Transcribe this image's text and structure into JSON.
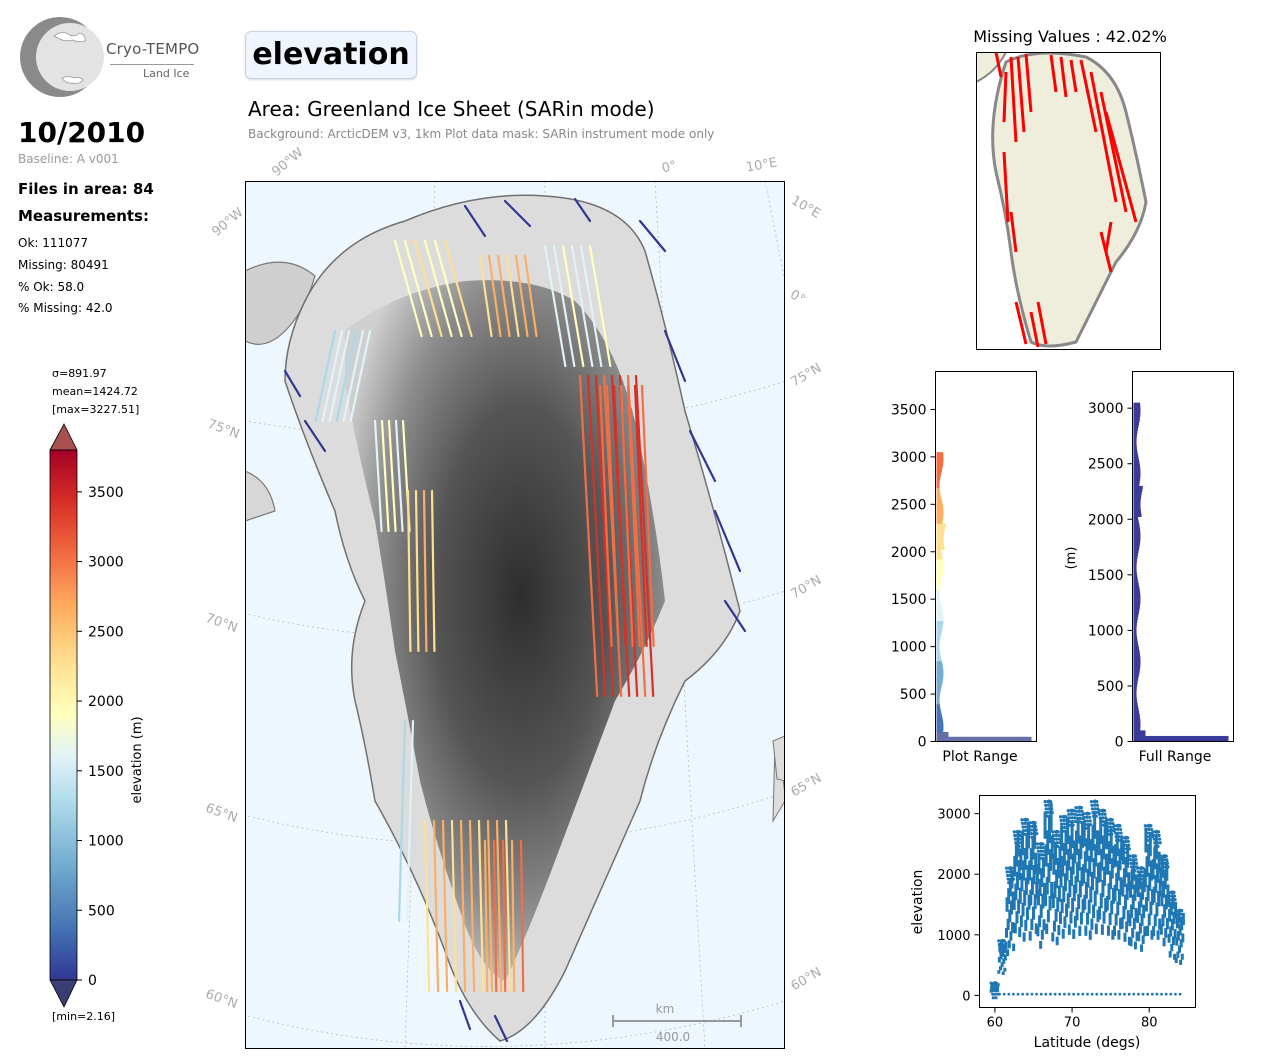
{
  "logo": {
    "name": "Cryo-TEMPO",
    "subtitle": "Land Ice"
  },
  "header": {
    "date": "10/2010",
    "baseline": "Baseline: A v001",
    "files": "Files in area: 84",
    "measurements_heading": "Measurements:",
    "ok": "Ok: 111077",
    "missing": "Missing: 80491",
    "pct_ok": "% Ok: 58.0",
    "pct_missing": "% Missing: 42.0",
    "param_title": "elevation",
    "area": "Area: Greenland Ice Sheet (SARin mode)",
    "background": "Background: ArcticDEM v3, 1km   Plot data mask: SARin instrument mode only"
  },
  "colorbar": {
    "sigma": "σ=891.97",
    "mean": "mean=1424.72",
    "max": "[max=3227.51]",
    "min": "[min=2.16]",
    "label": "elevation (m)",
    "ticks": [
      "0",
      "500",
      "1000",
      "1500",
      "2000",
      "2500",
      "3000",
      "3500"
    ],
    "range": [
      0,
      3800
    ]
  },
  "map": {
    "lat_labels_left": [
      "75°N",
      "70°N",
      "65°N",
      "60°N"
    ],
    "lat_labels_right": [
      "75°N",
      "70°N",
      "65°N",
      "60°N"
    ],
    "lon_labels_top": [
      "90°W",
      "0°",
      "10°E"
    ],
    "lon_labels_side": [
      "90°W",
      "10°E",
      "0°"
    ],
    "scale_unit": "km",
    "scale_value": "400.0"
  },
  "missing_map": {
    "title": "Missing Values : 42.02%",
    "missing_color": "#ff0000",
    "land_color": "#efeedd"
  },
  "histograms": [
    {
      "xlabel": "Plot Range",
      "yticks": [
        "0",
        "500",
        "1000",
        "1500",
        "2000",
        "2500",
        "3000",
        "3500"
      ],
      "ylim": [
        0,
        3900
      ]
    },
    {
      "xlabel": "Full Range",
      "ylabel": "(m)",
      "yticks": [
        "0",
        "500",
        "1000",
        "1500",
        "2000",
        "2500",
        "3000"
      ],
      "ylim": [
        0,
        3330
      ],
      "bar_color": "#3b3b9a"
    }
  ],
  "chart_data": {
    "type": "scatter",
    "xlabel": "Latitude (degs)",
    "ylabel": "elevation",
    "xlim": [
      58,
      86
    ],
    "ylim": [
      -200,
      3300
    ],
    "xticks": [
      "60",
      "70",
      "80"
    ],
    "yticks": [
      "0",
      "1000",
      "2000",
      "3000"
    ],
    "color": "#1f77b4",
    "envelope": [
      {
        "x": 60,
        "y": 200
      },
      {
        "x": 61,
        "y": 900
      },
      {
        "x": 62,
        "y": 2100
      },
      {
        "x": 63,
        "y": 2700
      },
      {
        "x": 64,
        "y": 2900
      },
      {
        "x": 65,
        "y": 2850
      },
      {
        "x": 66,
        "y": 2500
      },
      {
        "x": 67,
        "y": 3200
      },
      {
        "x": 68,
        "y": 2700
      },
      {
        "x": 69,
        "y": 2950
      },
      {
        "x": 70,
        "y": 3050
      },
      {
        "x": 71,
        "y": 3100
      },
      {
        "x": 72,
        "y": 3000
      },
      {
        "x": 73,
        "y": 3200
      },
      {
        "x": 74,
        "y": 3050
      },
      {
        "x": 75,
        "y": 2900
      },
      {
        "x": 76,
        "y": 2800
      },
      {
        "x": 77,
        "y": 2600
      },
      {
        "x": 78,
        "y": 2300
      },
      {
        "x": 79,
        "y": 2100
      },
      {
        "x": 80,
        "y": 2800
      },
      {
        "x": 81,
        "y": 2700
      },
      {
        "x": 82,
        "y": 2300
      },
      {
        "x": 83,
        "y": 1700
      },
      {
        "x": 84,
        "y": 1400
      }
    ]
  }
}
